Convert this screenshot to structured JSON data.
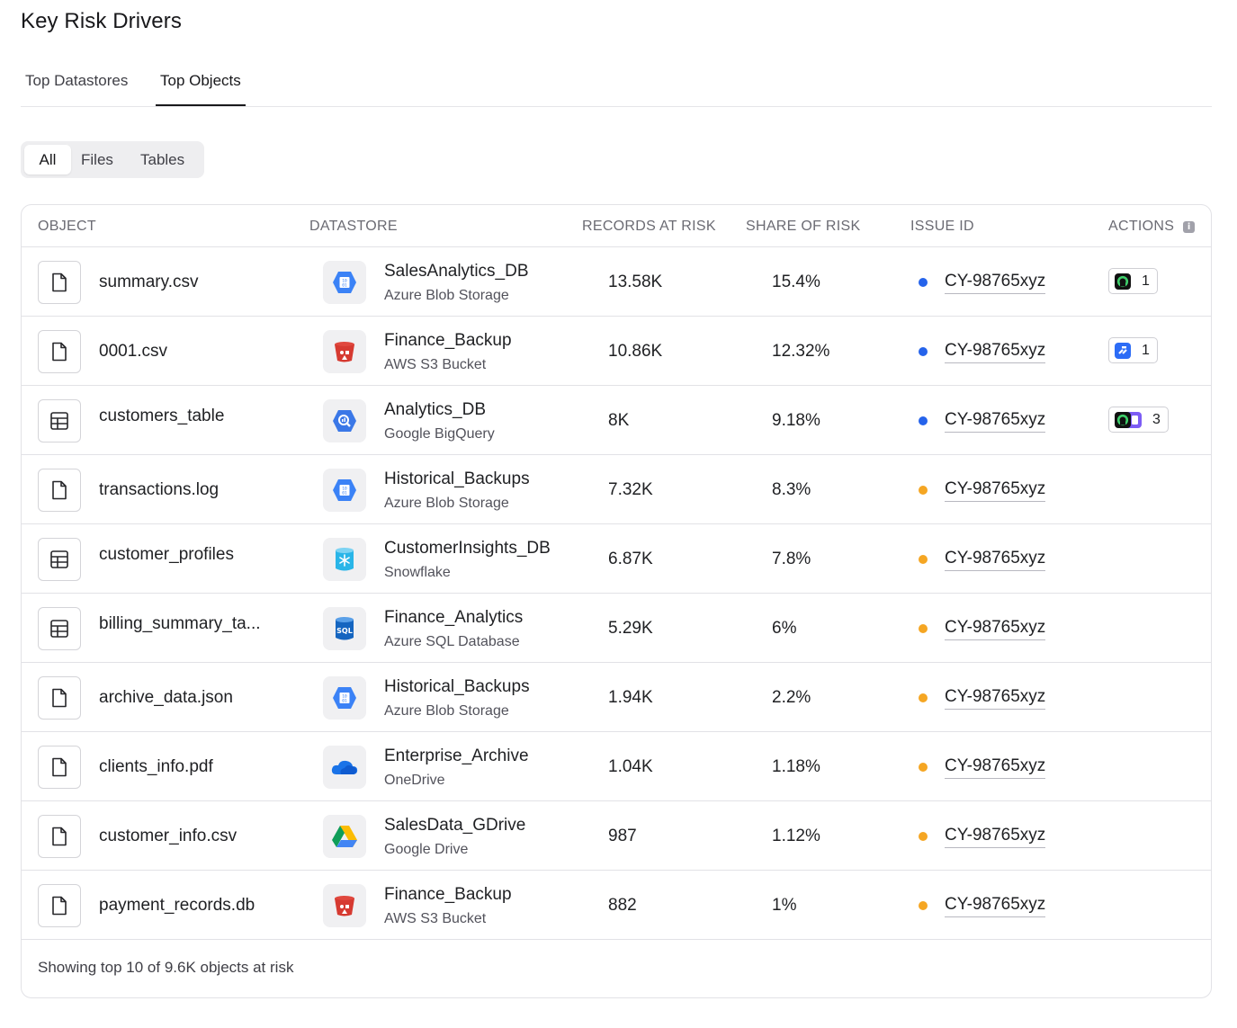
{
  "title": "Key Risk Drivers",
  "tabs": [
    "Top Datastores",
    "Top Objects"
  ],
  "active_tab": "Top Objects",
  "filters": [
    "All",
    "Files",
    "Tables"
  ],
  "active_filter": "All",
  "columns": {
    "object": "OBJECT",
    "datastore": "DATASTORE",
    "records": "RECORDS AT RISK",
    "share": "SHARE OF RISK",
    "issue": "ISSUE ID",
    "actions": "ACTIONS"
  },
  "severity_colors": {
    "blue": "#2563eb",
    "orange": "#f5a623"
  },
  "rows": [
    {
      "object": "summary.csv",
      "object_icon": "file-icon",
      "datastore": "SalesAnalytics_DB",
      "datastore_type": "Azure Blob Storage",
      "datastore_icon": "azure-blob-icon",
      "records": "13.58K",
      "share": "15.4%",
      "severity": "blue",
      "issue": "CY-98765xyz",
      "action_icon": "ring-app-icon",
      "action_count": "1"
    },
    {
      "object": "0001.csv",
      "object_icon": "file-icon",
      "datastore": "Finance_Backup",
      "datastore_type": "AWS S3 Bucket",
      "datastore_icon": "aws-s3-icon",
      "records": "10.86K",
      "share": "12.32%",
      "severity": "blue",
      "issue": "CY-98765xyz",
      "action_icon": "jira-icon",
      "action_count": "1"
    },
    {
      "object": "customers_table",
      "object_icon": "table-icon",
      "datastore": "Analytics_DB",
      "datastore_type": "Google BigQuery",
      "datastore_icon": "bigquery-icon",
      "records": "8K",
      "share": "9.18%",
      "severity": "blue",
      "issue": "CY-98765xyz",
      "action_icon": "multi-app-icon",
      "action_count": "3"
    },
    {
      "object": "transactions.log",
      "object_icon": "file-icon",
      "datastore": "Historical_Backups",
      "datastore_type": "Azure Blob Storage",
      "datastore_icon": "azure-blob-icon",
      "records": "7.32K",
      "share": "8.3%",
      "severity": "orange",
      "issue": "CY-98765xyz"
    },
    {
      "object": "customer_profiles",
      "object_icon": "table-icon",
      "datastore": "CustomerInsights_DB",
      "datastore_type": "Snowflake",
      "datastore_icon": "snowflake-icon",
      "records": "6.87K",
      "share": "7.8%",
      "severity": "orange",
      "issue": "CY-98765xyz"
    },
    {
      "object": "billing_summary_ta...",
      "object_icon": "table-icon",
      "datastore": "Finance_Analytics",
      "datastore_type": "Azure SQL Database",
      "datastore_icon": "azure-sql-icon",
      "records": "5.29K",
      "share": "6%",
      "severity": "orange",
      "issue": "CY-98765xyz"
    },
    {
      "object": "archive_data.json",
      "object_icon": "file-icon",
      "datastore": "Historical_Backups",
      "datastore_type": "Azure Blob Storage",
      "datastore_icon": "azure-blob-icon",
      "records": "1.94K",
      "share": "2.2%",
      "severity": "orange",
      "issue": "CY-98765xyz"
    },
    {
      "object": "clients_info.pdf",
      "object_icon": "file-icon",
      "datastore": "Enterprise_Archive",
      "datastore_type": "OneDrive",
      "datastore_icon": "onedrive-icon",
      "records": "1.04K",
      "share": "1.18%",
      "severity": "orange",
      "issue": "CY-98765xyz"
    },
    {
      "object": "customer_info.csv",
      "object_icon": "file-icon",
      "datastore": "SalesData_GDrive",
      "datastore_type": "Google Drive",
      "datastore_icon": "google-drive-icon",
      "records": "987",
      "share": "1.12%",
      "severity": "orange",
      "issue": "CY-98765xyz"
    },
    {
      "object": "payment_records.db",
      "object_icon": "file-icon",
      "datastore": "Finance_Backup",
      "datastore_type": "AWS S3 Bucket",
      "datastore_icon": "aws-s3-icon",
      "records": "882",
      "share": "1%",
      "severity": "orange",
      "issue": "CY-98765xyz"
    }
  ],
  "footer": "Showing top 10 of 9.6K objects at risk"
}
